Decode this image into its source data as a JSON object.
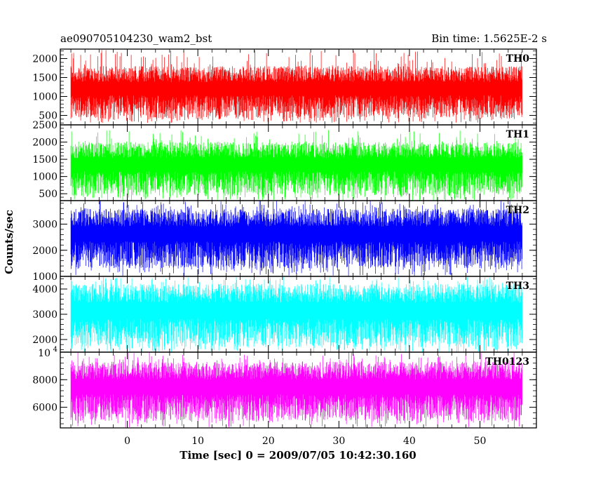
{
  "header": {
    "title": "ae090705104230_wam2_bst",
    "bin_time": "Bin time: 1.5625E-2 s"
  },
  "chart_data": {
    "type": "line",
    "title": "ae090705104230_wam2_bst",
    "xlabel": "Time [sec] 0 = 2009/07/05 10:42:30.160",
    "ylabel": "Counts/sec",
    "xlim": [
      -9.5,
      58
    ],
    "x_ticks": [
      0,
      10,
      20,
      30,
      40,
      50
    ],
    "x_tick_labels": [
      "0",
      "10",
      "20",
      "30",
      "40",
      "50"
    ],
    "data_x_range": [
      -8,
      56
    ],
    "bin_time_s": 0.015625,
    "grid": false,
    "panels": [
      {
        "name": "TH0",
        "color": "#ff0000",
        "ylim": [
          250,
          2250
        ],
        "yticks": [
          500,
          1000,
          1500,
          2000
        ],
        "ytick_labels": [
          "500",
          "1000",
          "1500",
          "2000"
        ],
        "typical_range": [
          400,
          1800
        ],
        "spike_range": [
          300,
          2250
        ]
      },
      {
        "name": "TH1",
        "color": "#00ff00",
        "ylim": [
          300,
          2500
        ],
        "yticks": [
          500,
          1000,
          1500,
          2000,
          2500
        ],
        "ytick_labels": [
          "500",
          "1000",
          "1500",
          "2000",
          "2500"
        ],
        "typical_range": [
          450,
          2000
        ],
        "spike_range": [
          300,
          2350
        ]
      },
      {
        "name": "TH2",
        "color": "#0000ff",
        "ylim": [
          1000,
          3900
        ],
        "yticks": [
          1000,
          2000,
          3000
        ],
        "ytick_labels": [
          "1000",
          "2000",
          "3000"
        ],
        "typical_range": [
          1300,
          3600
        ],
        "spike_range": [
          1000,
          3900
        ]
      },
      {
        "name": "TH3",
        "color": "#00ffff",
        "ylim": [
          1500,
          4500
        ],
        "yticks": [
          2000,
          3000,
          4000
        ],
        "ytick_labels": [
          "2000",
          "3000",
          "4000"
        ],
        "typical_range": [
          1700,
          4200
        ],
        "spike_range": [
          1500,
          4500
        ]
      },
      {
        "name": "TH0123",
        "color": "#ff00ff",
        "ylim": [
          4500,
          10000
        ],
        "yticks": [
          6000,
          8000
        ],
        "ytick_labels": [
          "6000",
          "8000"
        ],
        "top_label_base": "10",
        "top_label_exp": "4",
        "typical_range": [
          5000,
          9300
        ],
        "spike_range": [
          4500,
          10000
        ]
      }
    ]
  }
}
